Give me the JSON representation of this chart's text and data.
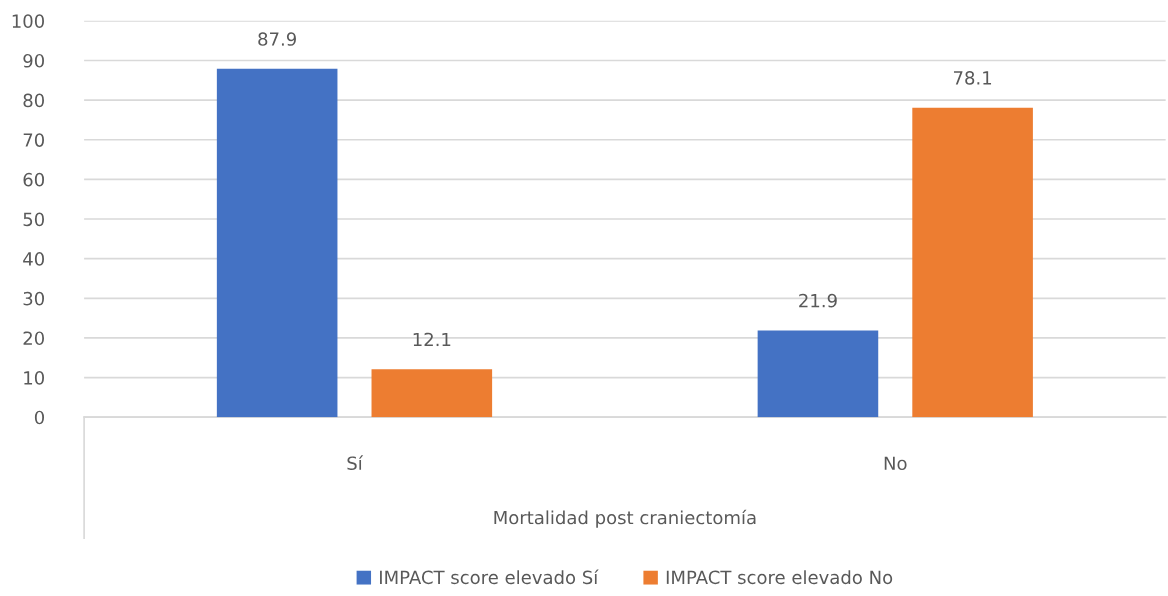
{
  "chart_data": {
    "type": "bar",
    "categories": [
      "Sí",
      "No"
    ],
    "xlabel": "Mortalidad post craniectomía",
    "series": [
      {
        "name": "IMPACT score elevado Sí",
        "color": "#4472c4",
        "values": [
          87.9,
          21.9
        ]
      },
      {
        "name": "IMPACT score elevado No",
        "color": "#ed7d31",
        "values": [
          12.1,
          78.1
        ]
      }
    ],
    "ylim": [
      0,
      100
    ],
    "yticks": [
      0,
      10,
      20,
      30,
      40,
      50,
      60,
      70,
      80,
      90,
      100
    ],
    "grid": "y",
    "legend": "bottom",
    "data_labels": true
  }
}
